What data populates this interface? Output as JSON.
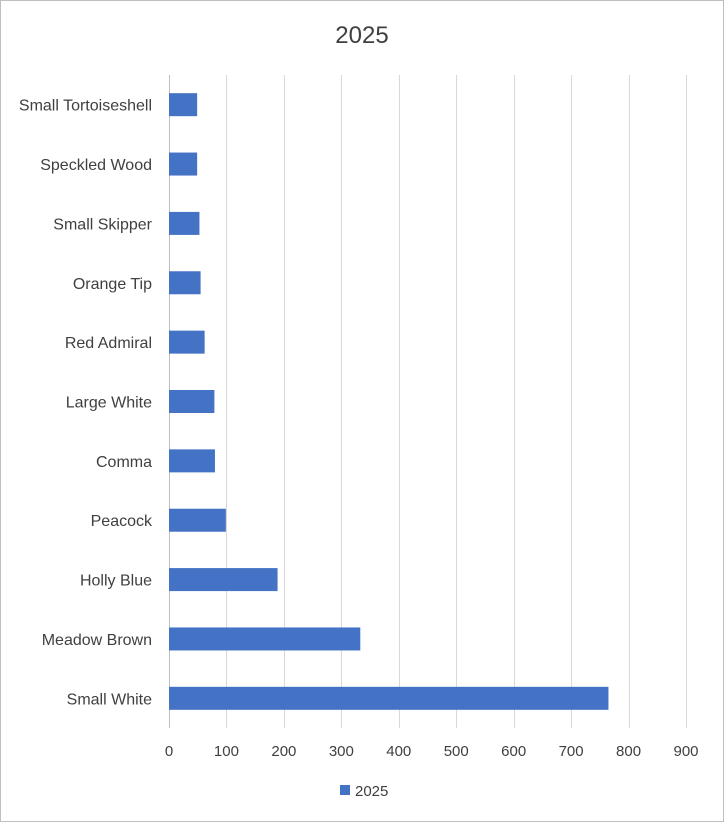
{
  "chart_data": {
    "type": "bar",
    "orientation": "horizontal",
    "title": "2025",
    "categories": [
      "Small White",
      "Meadow Brown",
      "Holly Blue",
      "Peacock",
      "Comma",
      "Large White",
      "Red Admiral",
      "Orange Tip",
      "Small Skipper",
      "Speckled Wood",
      "Small Tortoiseshell"
    ],
    "series": [
      {
        "name": "2025",
        "color": "#4472c4",
        "values": [
          765,
          333,
          189,
          99,
          80,
          79,
          62,
          55,
          53,
          49,
          49
        ]
      }
    ],
    "xlim": [
      0,
      900
    ],
    "x_ticks": [
      0,
      100,
      200,
      300,
      400,
      500,
      600,
      700,
      800,
      900
    ],
    "grid": "vertical",
    "legend": "bottom"
  }
}
